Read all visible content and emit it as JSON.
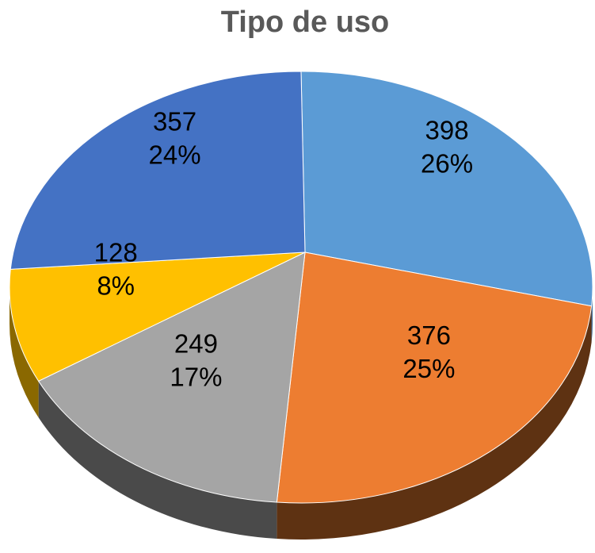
{
  "chart_data": {
    "type": "pie",
    "title": "Tipo de uso",
    "values": [
      398,
      376,
      249,
      128,
      357
    ],
    "percent_labels": [
      "26%",
      "25%",
      "17%",
      "8%",
      "24%"
    ],
    "colors": [
      "#5b9bd5",
      "#ed7d31",
      "#a5a5a5",
      "#ffc000",
      "#4472c4"
    ],
    "side_colors": [
      "#3a6a99",
      "#5e3212",
      "#4a4a4a",
      "#8a6800",
      "#2c4a80"
    ]
  }
}
